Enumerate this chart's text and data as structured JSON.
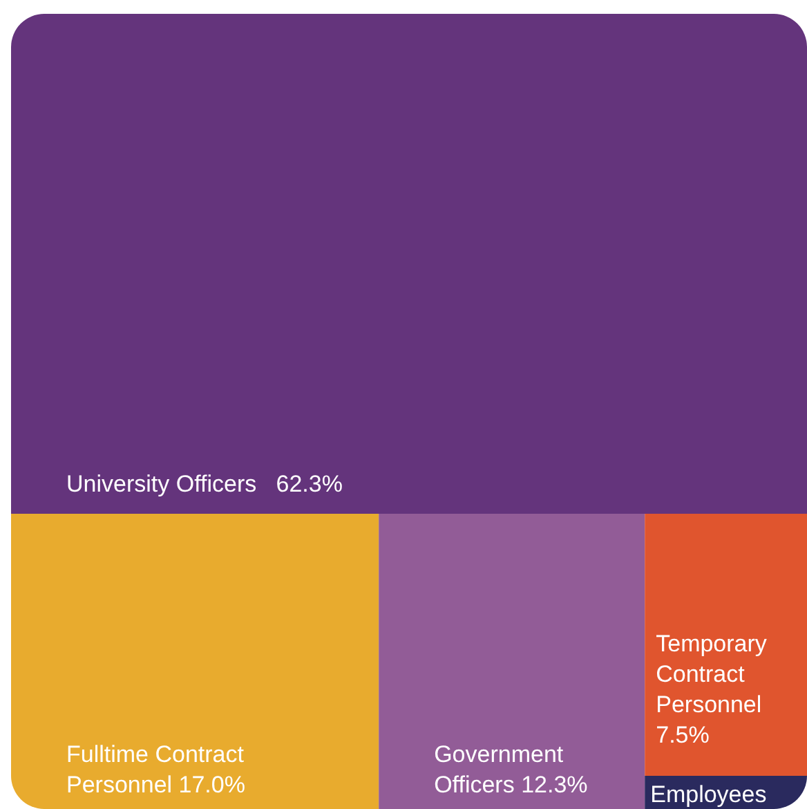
{
  "chart_data": {
    "type": "other",
    "categories": [
      "University Officers",
      "Fulltime Contract Personnel",
      "Government Officers",
      "Temporary Contract Personnel",
      "Employees"
    ],
    "values": [
      62.3,
      17.0,
      12.3,
      7.5,
      null
    ],
    "value_labels": [
      "62.3%",
      "17.0%",
      "12.3%",
      "7.5%",
      null
    ],
    "colors": [
      "#64347c",
      "#e8ab2e",
      "#925c97",
      "#e0552e",
      "#2a2a5e"
    ]
  }
}
